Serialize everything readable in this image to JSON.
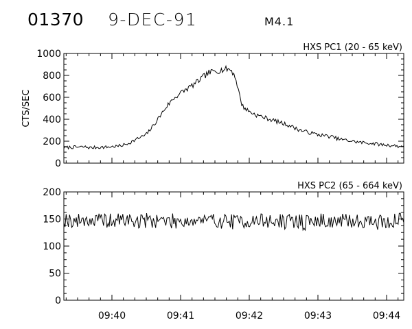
{
  "header": {
    "event_id": "01370",
    "date": "9-DEC-91",
    "goes_class": "M4.1"
  },
  "chart_data": [
    {
      "type": "line",
      "title": "HXS PC1 (20 - 65 keV)",
      "ylabel": "CTS/SEC",
      "xlabel": "",
      "ylim": [
        0,
        1000
      ],
      "yticks": [
        0,
        200,
        400,
        600,
        800,
        1000
      ],
      "x_unit": "minutes after 09:00",
      "xlim": [
        39.3,
        44.25
      ],
      "xticks": [
        {
          "value": 40,
          "label": ""
        },
        {
          "value": 41,
          "label": ""
        },
        {
          "value": 42,
          "label": ""
        },
        {
          "value": 43,
          "label": ""
        },
        {
          "value": 44,
          "label": ""
        }
      ],
      "grid": false,
      "series": [
        {
          "x": [
            39.3,
            39.4,
            39.5,
            39.6,
            39.7,
            39.8,
            39.9,
            40.0,
            40.1,
            40.2,
            40.3,
            40.4,
            40.5,
            40.6,
            40.7,
            40.8,
            40.9,
            41.0,
            41.1,
            41.2,
            41.3,
            41.4,
            41.5,
            41.6,
            41.7,
            41.75,
            41.8,
            41.85,
            41.9,
            42.0,
            42.1,
            42.2,
            42.3,
            42.4,
            42.5,
            42.6,
            42.7,
            42.8,
            42.9,
            43.0,
            43.1,
            43.2,
            43.3,
            43.4,
            43.5,
            43.6,
            43.7,
            43.8,
            43.9,
            44.0,
            44.1,
            44.2,
            44.25
          ],
          "values": [
            140,
            145,
            145,
            148,
            140,
            145,
            145,
            150,
            155,
            170,
            200,
            230,
            260,
            340,
            430,
            520,
            590,
            640,
            680,
            720,
            770,
            820,
            840,
            850,
            860,
            840,
            780,
            640,
            520,
            470,
            440,
            420,
            400,
            380,
            360,
            340,
            310,
            290,
            275,
            260,
            250,
            240,
            220,
            210,
            200,
            190,
            185,
            180,
            170,
            165,
            160,
            150,
            165
          ]
        }
      ]
    },
    {
      "type": "line",
      "title": "HXS PC2 (65 - 664 keV)",
      "ylabel": "",
      "xlabel": "",
      "ylim": [
        0,
        200
      ],
      "yticks": [
        0,
        50,
        100,
        150,
        200
      ],
      "x_unit": "minutes after 09:00",
      "xlim": [
        39.3,
        44.25
      ],
      "xticks": [
        {
          "value": 40,
          "label": "09:40"
        },
        {
          "value": 41,
          "label": "09:41"
        },
        {
          "value": 42,
          "label": "09:42"
        },
        {
          "value": 43,
          "label": "09:43"
        },
        {
          "value": 44,
          "label": "09:44"
        }
      ],
      "grid": false,
      "series": [
        {
          "x": [
            39.3,
            39.4,
            39.5,
            39.6,
            39.7,
            39.8,
            39.9,
            40.0,
            40.1,
            40.2,
            40.3,
            40.4,
            40.5,
            40.6,
            40.7,
            40.8,
            40.9,
            41.0,
            41.1,
            41.2,
            41.3,
            41.4,
            41.5,
            41.6,
            41.7,
            41.8,
            41.9,
            42.0,
            42.1,
            42.2,
            42.3,
            42.4,
            42.5,
            42.6,
            42.7,
            42.8,
            42.9,
            43.0,
            43.1,
            43.2,
            43.3,
            43.4,
            43.5,
            43.6,
            43.7,
            43.8,
            43.9,
            44.0,
            44.1,
            44.2,
            44.25
          ],
          "values": [
            150,
            148,
            145,
            150,
            147,
            146,
            148,
            145,
            147,
            150,
            146,
            145,
            148,
            147,
            150,
            145,
            146,
            148,
            147,
            146,
            149,
            145,
            148,
            146,
            147,
            144,
            147,
            146,
            145,
            148,
            144,
            146,
            145,
            144,
            147,
            143,
            146,
            145,
            148,
            144,
            146,
            145,
            147,
            145,
            148,
            145,
            144,
            146,
            145,
            148,
            150
          ]
        }
      ]
    }
  ]
}
